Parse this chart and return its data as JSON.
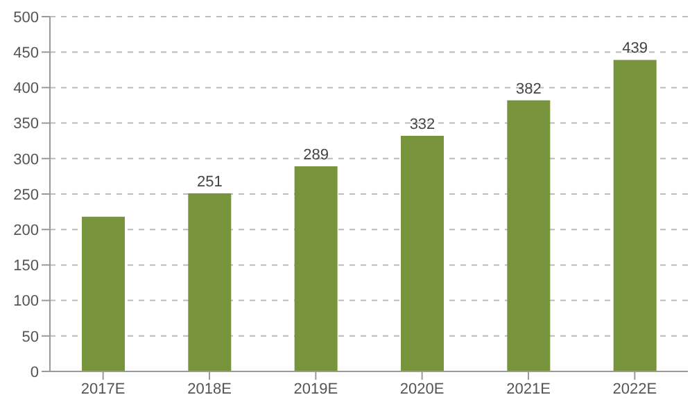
{
  "chart_data": {
    "type": "bar",
    "categories": [
      "2017E",
      "2018E",
      "2019E",
      "2020E",
      "2021E",
      "2022E"
    ],
    "values": [
      218,
      251,
      289,
      332,
      382,
      439
    ],
    "value_labels": [
      null,
      "251",
      "289",
      "332",
      "382",
      "439"
    ],
    "color": "#77933c",
    "ylim": [
      0,
      500
    ],
    "yticks": [
      0,
      50,
      100,
      150,
      200,
      250,
      300,
      350,
      400,
      450,
      500
    ],
    "grid": "y"
  }
}
